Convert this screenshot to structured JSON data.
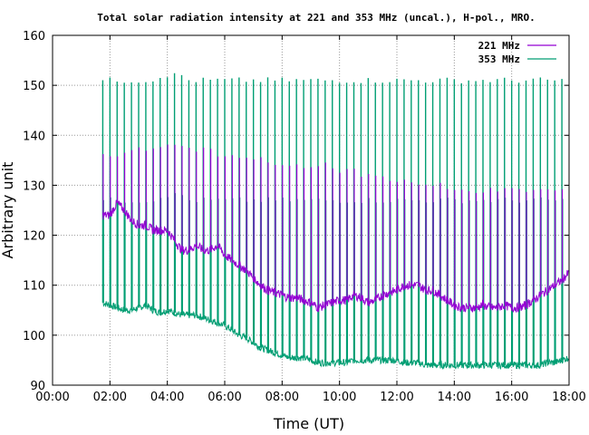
{
  "chart_data": {
    "type": "line",
    "title": "Total solar radiation intensity at 221 and 353 MHz (uncal.), H-pol., MRO.",
    "xlabel": "Time (UT)",
    "ylabel": "Arbitrary unit",
    "xlim": [
      "00:00",
      "18:00"
    ],
    "ylim": [
      90,
      160
    ],
    "x_ticks": [
      "00:00",
      "02:00",
      "04:00",
      "06:00",
      "08:00",
      "10:00",
      "12:00",
      "14:00",
      "16:00",
      "18:00"
    ],
    "y_ticks": [
      "90",
      "100",
      "110",
      "120",
      "130",
      "140",
      "150",
      "160"
    ],
    "grid": true,
    "legend_position": "top-right",
    "series": [
      {
        "name": "221 MHz",
        "color": "#9400d3",
        "x": [
          "01:45",
          "02:00",
          "02:15",
          "02:30",
          "02:45",
          "03:00",
          "03:15",
          "03:30",
          "03:45",
          "04:00",
          "04:15",
          "04:30",
          "04:45",
          "05:00",
          "05:15",
          "05:30",
          "05:45",
          "06:00",
          "06:15",
          "06:30",
          "06:45",
          "07:00",
          "07:15",
          "07:30",
          "07:45",
          "08:00",
          "08:15",
          "08:30",
          "08:45",
          "09:00",
          "09:15",
          "09:30",
          "09:45",
          "10:00",
          "10:15",
          "10:30",
          "10:45",
          "11:00",
          "11:15",
          "11:30",
          "11:45",
          "12:00",
          "12:15",
          "12:30",
          "12:45",
          "13:00",
          "13:15",
          "13:30",
          "13:45",
          "14:00",
          "14:15",
          "14:30",
          "14:45",
          "15:00",
          "15:15",
          "15:30",
          "15:45",
          "16:00",
          "16:15",
          "16:30",
          "16:45",
          "17:00",
          "17:15",
          "17:30",
          "17:45",
          "18:00"
        ],
        "values": [
          124,
          124,
          126.5,
          125,
          123,
          122,
          122,
          121,
          121,
          121,
          119,
          117,
          117,
          118,
          117,
          117,
          118,
          116,
          115,
          114,
          113,
          111.5,
          110,
          109,
          108.5,
          108,
          107.5,
          107.5,
          107,
          106.5,
          105.5,
          106,
          106.5,
          107,
          107,
          108,
          107.5,
          106.5,
          107,
          108,
          108.5,
          109,
          110,
          110,
          110,
          109,
          109,
          108,
          107,
          106,
          105.5,
          105.5,
          105.5,
          106,
          105.5,
          105.5,
          106,
          105.5,
          105.5,
          106,
          107,
          108,
          109,
          110,
          111,
          112.5
        ],
        "spikes_high": [
          136,
          137,
          138,
          137,
          136,
          135,
          134,
          134,
          133,
          132,
          131,
          130,
          129,
          129,
          129,
          129,
          129,
          130
        ]
      },
      {
        "name": "353 MHz",
        "color": "#009e73",
        "x": [
          "01:45",
          "02:00",
          "02:15",
          "02:30",
          "02:45",
          "03:00",
          "03:15",
          "03:30",
          "03:45",
          "04:00",
          "04:15",
          "04:30",
          "04:45",
          "05:00",
          "05:15",
          "05:30",
          "05:45",
          "06:00",
          "06:15",
          "06:30",
          "06:45",
          "07:00",
          "07:15",
          "07:30",
          "07:45",
          "08:00",
          "08:15",
          "08:30",
          "08:45",
          "09:00",
          "09:15",
          "09:30",
          "09:45",
          "10:00",
          "10:15",
          "10:30",
          "10:45",
          "11:00",
          "11:15",
          "11:30",
          "11:45",
          "12:00",
          "12:15",
          "12:30",
          "12:45",
          "13:00",
          "13:15",
          "13:30",
          "13:45",
          "14:00",
          "14:15",
          "14:30",
          "14:45",
          "15:00",
          "15:15",
          "15:30",
          "15:45",
          "16:00",
          "16:15",
          "16:30",
          "16:45",
          "17:00",
          "17:15",
          "17:30",
          "17:45",
          "18:00"
        ],
        "values": [
          106.5,
          106,
          105.5,
          105,
          105,
          105.5,
          106,
          105,
          104.5,
          105,
          104.5,
          104,
          104,
          104,
          103.5,
          103,
          102.5,
          102,
          101,
          100,
          99.5,
          98.5,
          97.5,
          97,
          96.5,
          96,
          95.5,
          95.5,
          95.5,
          95,
          94.5,
          94.5,
          94.5,
          94.5,
          94.5,
          95,
          95,
          95,
          95,
          95,
          95,
          95,
          94.5,
          94.5,
          94.5,
          94,
          94,
          94,
          94,
          94,
          94,
          94,
          94,
          94,
          94,
          94,
          94,
          94,
          94,
          94,
          94,
          94,
          94.5,
          94.5,
          95,
          95.5
        ],
        "spikes_high": [
          151,
          151,
          152,
          151,
          151,
          151,
          151,
          151,
          151,
          151,
          151,
          151,
          151,
          151,
          151,
          151,
          151,
          151
        ]
      }
    ]
  }
}
